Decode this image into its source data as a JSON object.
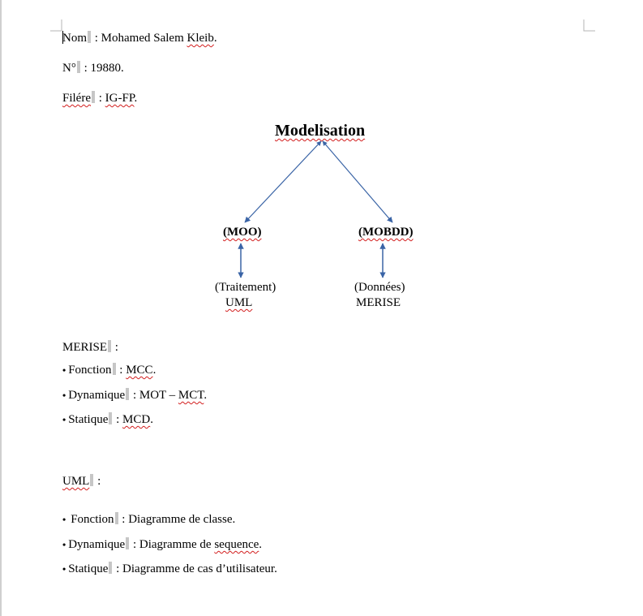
{
  "document": {
    "lines": {
      "nom": {
        "label": "Nom",
        "value": "Mohamed Salem",
        "squiggle": "Kleib",
        "end": "."
      },
      "numero": {
        "label": "N°",
        "value": "19880."
      },
      "filiere": {
        "label": "Filére",
        "value": "IG-FP",
        "end": "."
      }
    },
    "diagram": {
      "title": "Modelisation",
      "left_node": "(MOO)",
      "right_node": "(MOBDD)",
      "left_desc_1": "(Traitement)",
      "left_desc_2": "UML",
      "right_desc_1": "(Données)",
      "right_desc_2": "MERISE",
      "arrow_color": "#3a64a6"
    },
    "merise": {
      "heading": "MERISE",
      "items": [
        {
          "bullet": "•",
          "label": "Fonction",
          "value": "MCC",
          "end": "."
        },
        {
          "bullet": "•",
          "label": "Dynamique",
          "value_plain": "MOT –",
          "value": "MCT",
          "end": "."
        },
        {
          "bullet": "•",
          "label": "Statique",
          "value": "MCD",
          "end": "."
        }
      ]
    },
    "uml": {
      "heading": "UML",
      "items": [
        {
          "bullet": "•",
          "label": "Fonction",
          "value": "Diagramme de classe."
        },
        {
          "bullet": "•",
          "label": "Dynamique",
          "value_plain": "Diagramme de",
          "value": "sequence",
          "end": "."
        },
        {
          "bullet": "•",
          "label": "Statique",
          "value": "Diagramme de cas d’utilisateur."
        }
      ]
    },
    "separator": " :"
  }
}
